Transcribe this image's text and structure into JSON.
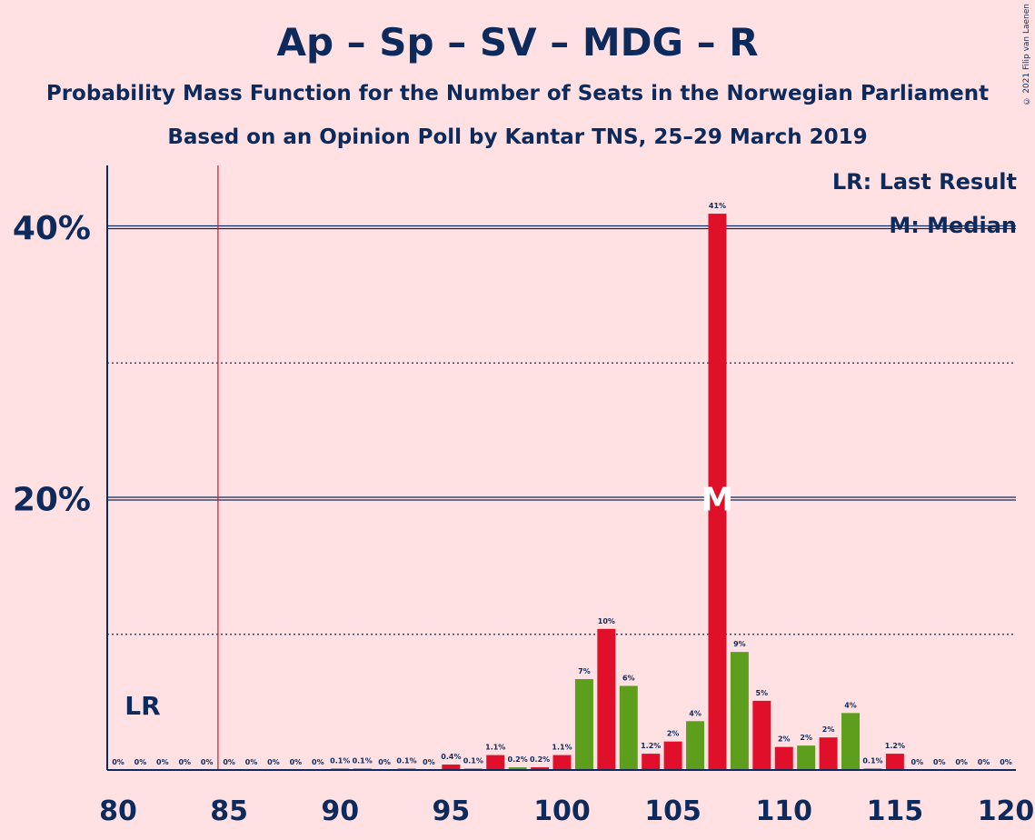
{
  "title": "Ap – Sp – SV – MDG – R",
  "subtitle1": "Probability Mass Function for the Number of Seats in the Norwegian Parliament",
  "subtitle2": "Based on an Opinion Poll by Kantar TNS, 25–29 March 2019",
  "copyright": "© 2021 Filip van Laenen",
  "legend": {
    "lr": "LR: Last Result",
    "m": "M: Median"
  },
  "colors": {
    "red": "#E0102A",
    "green": "#5E9E1D",
    "red_light": "#E61E2A",
    "axis": "#0D2A5C"
  },
  "chart_data": {
    "type": "bar",
    "xlim": [
      80,
      120
    ],
    "ylim": [
      0,
      45
    ],
    "xticks": [
      80,
      85,
      90,
      95,
      100,
      105,
      110,
      115,
      120
    ],
    "yticks": [
      {
        "value": 20,
        "label": "20%"
      },
      {
        "value": 40,
        "label": "40%"
      }
    ],
    "minor_gridlines": [
      10,
      30
    ],
    "last_result": 84.5,
    "last_result_label": "LR",
    "median": 107,
    "median_label": "M",
    "bars": [
      {
        "x": 80,
        "value": 0,
        "label": "0%",
        "color": "red"
      },
      {
        "x": 81,
        "value": 0,
        "label": "0%",
        "color": "red"
      },
      {
        "x": 82,
        "value": 0,
        "label": "0%",
        "color": "red"
      },
      {
        "x": 83,
        "value": 0,
        "label": "0%",
        "color": "red"
      },
      {
        "x": 84,
        "value": 0,
        "label": "0%",
        "color": "red"
      },
      {
        "x": 85,
        "value": 0,
        "label": "0%",
        "color": "red"
      },
      {
        "x": 86,
        "value": 0,
        "label": "0%",
        "color": "red"
      },
      {
        "x": 87,
        "value": 0,
        "label": "0%",
        "color": "red"
      },
      {
        "x": 88,
        "value": 0,
        "label": "0%",
        "color": "red"
      },
      {
        "x": 89,
        "value": 0,
        "label": "0%",
        "color": "red"
      },
      {
        "x": 90,
        "value": 0.1,
        "label": "0.1%",
        "color": "red"
      },
      {
        "x": 91,
        "value": 0.1,
        "label": "0.1%",
        "color": "red"
      },
      {
        "x": 92,
        "value": 0,
        "label": "0%",
        "color": "red"
      },
      {
        "x": 93,
        "value": 0.1,
        "label": "0.1%",
        "color": "red"
      },
      {
        "x": 94,
        "value": 0,
        "label": "0%",
        "color": "red"
      },
      {
        "x": 95,
        "value": 0.4,
        "label": "0.4%",
        "color": "red"
      },
      {
        "x": 96,
        "value": 0.1,
        "label": "0.1%",
        "color": "red"
      },
      {
        "x": 97,
        "value": 1.1,
        "label": "1.1%",
        "color": "red"
      },
      {
        "x": 98,
        "value": 0.2,
        "label": "0.2%",
        "color": "green"
      },
      {
        "x": 99,
        "value": 0.2,
        "label": "0.2%",
        "color": "red"
      },
      {
        "x": 100,
        "value": 1.1,
        "label": "1.1%",
        "color": "red"
      },
      {
        "x": 101,
        "value": 6.7,
        "label": "7%",
        "color": "green"
      },
      {
        "x": 102,
        "value": 10.4,
        "label": "10%",
        "color": "red"
      },
      {
        "x": 103,
        "value": 6.2,
        "label": "6%",
        "color": "green"
      },
      {
        "x": 104,
        "value": 1.2,
        "label": "1.2%",
        "color": "red"
      },
      {
        "x": 105,
        "value": 2.1,
        "label": "2%",
        "color": "red"
      },
      {
        "x": 106,
        "value": 3.6,
        "label": "4%",
        "color": "green"
      },
      {
        "x": 107,
        "value": 41,
        "label": "41%",
        "color": "red"
      },
      {
        "x": 108,
        "value": 8.7,
        "label": "9%",
        "color": "green"
      },
      {
        "x": 109,
        "value": 5.1,
        "label": "5%",
        "color": "red"
      },
      {
        "x": 110,
        "value": 1.7,
        "label": "2%",
        "color": "red"
      },
      {
        "x": 111,
        "value": 1.8,
        "label": "2%",
        "color": "green"
      },
      {
        "x": 112,
        "value": 2.4,
        "label": "2%",
        "color": "red"
      },
      {
        "x": 113,
        "value": 4.2,
        "label": "4%",
        "color": "green"
      },
      {
        "x": 114,
        "value": 0.1,
        "label": "0.1%",
        "color": "red"
      },
      {
        "x": 115,
        "value": 1.2,
        "label": "1.2%",
        "color": "red"
      },
      {
        "x": 116,
        "value": 0,
        "label": "0%",
        "color": "red"
      },
      {
        "x": 117,
        "value": 0,
        "label": "0%",
        "color": "red"
      },
      {
        "x": 118,
        "value": 0,
        "label": "0%",
        "color": "red"
      },
      {
        "x": 119,
        "value": 0,
        "label": "0%",
        "color": "red"
      },
      {
        "x": 120,
        "value": 0,
        "label": "0%",
        "color": "red"
      }
    ]
  }
}
